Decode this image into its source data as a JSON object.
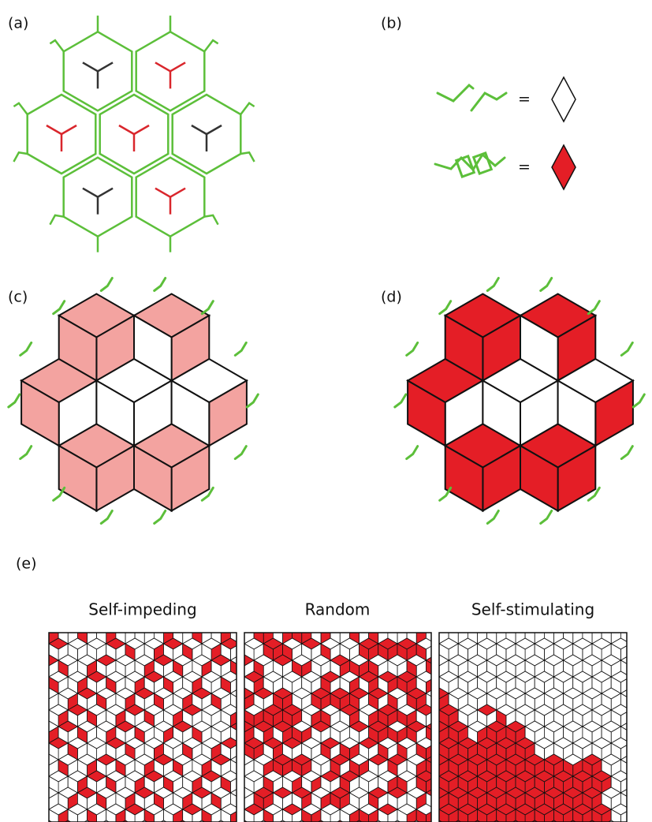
{
  "panels": {
    "a": {
      "label": "(a)"
    },
    "b": {
      "label": "(b)",
      "equals": [
        "=",
        "="
      ]
    },
    "c": {
      "label": "(c)"
    },
    "d": {
      "label": "(d)"
    },
    "e": {
      "label": "(e)",
      "titles": [
        "Self-impeding",
        "Random",
        "Self-stimulating"
      ]
    }
  }
}
